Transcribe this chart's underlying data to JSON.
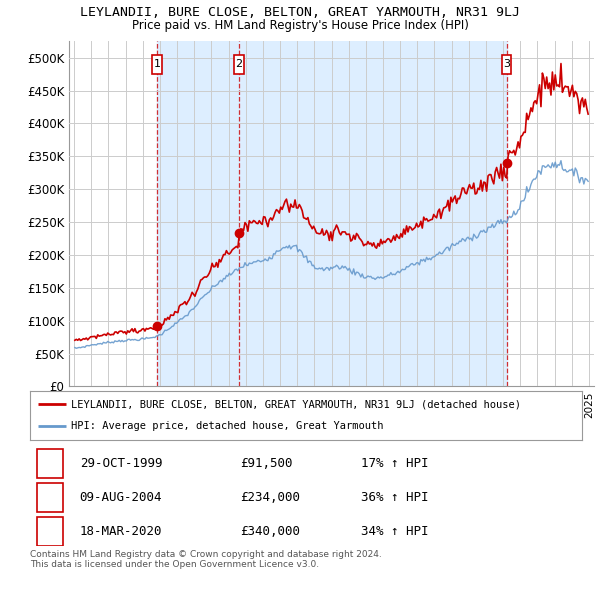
{
  "title": "LEYLANDII, BURE CLOSE, BELTON, GREAT YARMOUTH, NR31 9LJ",
  "subtitle": "Price paid vs. HM Land Registry's House Price Index (HPI)",
  "ylim": [
    0,
    525000
  ],
  "yticks": [
    0,
    50000,
    100000,
    150000,
    200000,
    250000,
    300000,
    350000,
    400000,
    450000,
    500000
  ],
  "ytick_labels": [
    "£0",
    "£50K",
    "£100K",
    "£150K",
    "£200K",
    "£250K",
    "£300K",
    "£350K",
    "£400K",
    "£450K",
    "£500K"
  ],
  "background_color": "#ffffff",
  "grid_color": "#cccccc",
  "sale_color": "#cc0000",
  "hpi_color": "#6699cc",
  "shade_color": "#ddeeff",
  "sale_label": "LEYLANDII, BURE CLOSE, BELTON, GREAT YARMOUTH, NR31 9LJ (detached house)",
  "hpi_label": "HPI: Average price, detached house, Great Yarmouth",
  "transactions": [
    {
      "num": 1,
      "date": "29-OCT-1999",
      "price": 91500,
      "hpi_pct": "17% ↑ HPI"
    },
    {
      "num": 2,
      "date": "09-AUG-2004",
      "price": 234000,
      "hpi_pct": "36% ↑ HPI"
    },
    {
      "num": 3,
      "date": "18-MAR-2020",
      "price": 340000,
      "hpi_pct": "34% ↑ HPI"
    }
  ],
  "footnote": "Contains HM Land Registry data © Crown copyright and database right 2024.\nThis data is licensed under the Open Government Licence v3.0.",
  "sale_years": [
    1999.83,
    2004.6,
    2020.21
  ],
  "sale_prices": [
    91500,
    234000,
    340000
  ],
  "xlim_left": 1994.7,
  "xlim_right": 2025.3
}
